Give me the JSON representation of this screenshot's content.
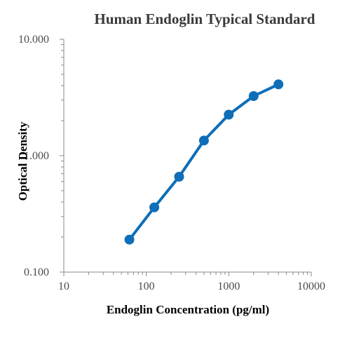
{
  "chart_data": {
    "type": "line",
    "title": "Human Endoglin Typical Standard",
    "xlabel": "Endoglin Concentration (pg/ml)",
    "ylabel": "Optical Density",
    "x_scale": "log",
    "y_scale": "log",
    "xlim": [
      10,
      10000
    ],
    "ylim": [
      0.1,
      10
    ],
    "x_ticks": [
      10,
      100,
      1000,
      10000
    ],
    "x_tick_labels": [
      "10",
      "100",
      "1000",
      "10000"
    ],
    "y_ticks": [
      0.1,
      1,
      10
    ],
    "y_tick_labels": [
      "0.100",
      "1.000",
      "10.000"
    ],
    "grid": false,
    "legend": "none",
    "series": [
      {
        "color": "#0E6EB8",
        "x": [
          62.5,
          125,
          250,
          500,
          1000,
          2000,
          4000
        ],
        "y": [
          0.19,
          0.36,
          0.66,
          1.35,
          2.25,
          3.25,
          4.1
        ]
      }
    ]
  }
}
